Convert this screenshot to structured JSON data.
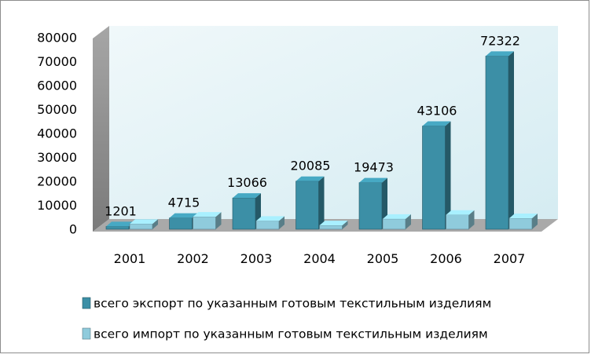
{
  "chart_data": {
    "type": "bar",
    "categories": [
      "2001",
      "2002",
      "2003",
      "2004",
      "2005",
      "2006",
      "2007"
    ],
    "series": [
      {
        "name": "всего экспорт по указанным готовым текстильным изделиям",
        "values": [
          1201,
          4715,
          13066,
          20085,
          19473,
          43106,
          72322
        ],
        "color": "#3c8fa6"
      },
      {
        "name": "всего импорт по указанным готовым текстильным изделиям",
        "values": [
          2200,
          5200,
          3500,
          1600,
          4300,
          6000,
          4600
        ],
        "color": "#8fcbdc"
      }
    ],
    "data_labels": [
      "1201",
      "4715",
      "13066",
      "20085",
      "19473",
      "43106",
      "72322"
    ],
    "ylim": [
      0,
      80000
    ],
    "yticks": [
      0,
      10000,
      20000,
      30000,
      40000,
      50000,
      60000,
      70000,
      80000
    ],
    "grid": false,
    "legend_position": "bottom",
    "style": "3d-clustered-column"
  }
}
